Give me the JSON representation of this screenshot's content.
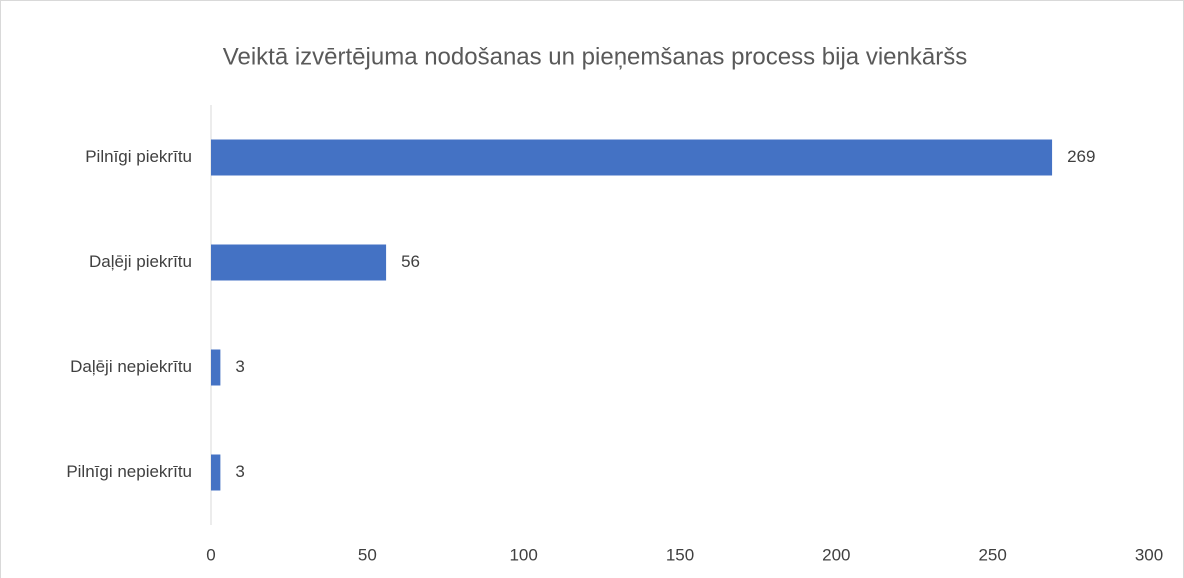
{
  "chart_data": {
    "type": "barh",
    "title": "Veiktā izvērtējuma nodošanas un pieņemšanas process bija vienkāršs",
    "categories": [
      "Pilnīgi piekrītu",
      "Daļēji piekrītu",
      "Daļēji nepiekrītu",
      "Pilnīgi nepiekrītu"
    ],
    "values": [
      269,
      56,
      3,
      3
    ],
    "color": "#4472c4",
    "xlim": [
      0,
      300
    ],
    "xticks": [
      0,
      50,
      100,
      150,
      200,
      250,
      300
    ],
    "grid": false
  }
}
